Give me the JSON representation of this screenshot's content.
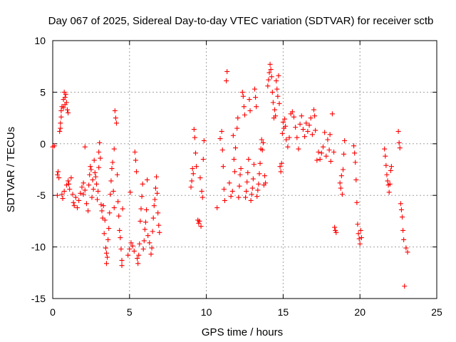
{
  "chart_data": {
    "type": "scatter",
    "title": "Day 067 of 2025, Sidereal Day-to-day VTEC variation (SDTVAR) for receiver sctb",
    "xlabel": "GPS time / hours",
    "ylabel": "SDTVAR / TECUs",
    "xlim": [
      0,
      25
    ],
    "ylim": [
      -15,
      10
    ],
    "xticks": [
      0,
      5,
      10,
      15,
      20,
      25
    ],
    "yticks": [
      -15,
      -10,
      -5,
      0,
      5,
      10
    ],
    "grid": true,
    "marker": "+",
    "marker_color": "#ff0000",
    "series": [
      {
        "name": "SDTVAR",
        "points": [
          [
            0.0,
            -0.3
          ],
          [
            0.1,
            -0.2
          ],
          [
            0.3,
            -3.0
          ],
          [
            0.3,
            -5.0
          ],
          [
            0.35,
            -2.7
          ],
          [
            0.4,
            -3.3
          ],
          [
            0.45,
            1.2
          ],
          [
            0.5,
            1.5
          ],
          [
            0.5,
            2.0
          ],
          [
            0.55,
            2.6
          ],
          [
            0.55,
            3.2
          ],
          [
            0.6,
            3.6
          ],
          [
            0.6,
            -4.9
          ],
          [
            0.65,
            -5.3
          ],
          [
            0.7,
            3.5
          ],
          [
            0.7,
            4.3
          ],
          [
            0.75,
            5.0
          ],
          [
            0.75,
            -4.6
          ],
          [
            0.8,
            4.5
          ],
          [
            0.8,
            3.8
          ],
          [
            0.85,
            4.8
          ],
          [
            0.9,
            -4.0
          ],
          [
            0.9,
            4.0
          ],
          [
            0.95,
            3.3
          ],
          [
            1.0,
            3.0
          ],
          [
            1.0,
            -3.6
          ],
          [
            1.05,
            -3.9
          ],
          [
            1.1,
            -4.4
          ],
          [
            1.2,
            -3.3
          ],
          [
            1.3,
            -4.9
          ],
          [
            1.35,
            -5.7
          ],
          [
            1.4,
            -6.0
          ],
          [
            1.5,
            -5.2
          ],
          [
            1.6,
            -6.2
          ],
          [
            1.7,
            -5.5
          ],
          [
            1.8,
            -4.8
          ],
          [
            1.9,
            -4.2
          ],
          [
            2.0,
            -3.8
          ],
          [
            2.0,
            -4.9
          ],
          [
            2.1,
            -0.3
          ],
          [
            2.1,
            -4.5
          ],
          [
            2.2,
            -5.8
          ],
          [
            2.3,
            -6.5
          ],
          [
            2.35,
            -4.0
          ],
          [
            2.4,
            -3.0
          ],
          [
            2.45,
            -2.2
          ],
          [
            2.5,
            -2.5
          ],
          [
            2.55,
            -5.2
          ],
          [
            2.6,
            -3.5
          ],
          [
            2.65,
            -4.4
          ],
          [
            2.7,
            -1.6
          ],
          [
            2.75,
            -2.8
          ],
          [
            2.8,
            -3.2
          ],
          [
            2.85,
            -3.9
          ],
          [
            2.9,
            -5.4
          ],
          [
            2.95,
            -4.6
          ],
          [
            3.0,
            -0.8
          ],
          [
            3.0,
            -2.3
          ],
          [
            3.05,
            0.1
          ],
          [
            3.1,
            -1.4
          ],
          [
            3.15,
            -5.9
          ],
          [
            3.2,
            -6.5
          ],
          [
            3.25,
            -7.2
          ],
          [
            3.3,
            -6.0
          ],
          [
            3.35,
            -8.7
          ],
          [
            3.4,
            -7.4
          ],
          [
            3.45,
            -10.1
          ],
          [
            3.5,
            -10.6
          ],
          [
            3.5,
            -11.6
          ],
          [
            3.55,
            -11.0
          ],
          [
            3.6,
            -9.3
          ],
          [
            3.65,
            -8.2
          ],
          [
            3.7,
            -6.7
          ],
          [
            3.75,
            -4.9
          ],
          [
            3.8,
            -3.6
          ],
          [
            3.85,
            -2.4
          ],
          [
            3.9,
            -1.8
          ],
          [
            3.95,
            -4.6
          ],
          [
            4.0,
            -6.2
          ],
          [
            4.0,
            -0.5
          ],
          [
            4.05,
            3.2
          ],
          [
            4.1,
            2.5
          ],
          [
            4.15,
            2.0
          ],
          [
            4.2,
            -3.0
          ],
          [
            4.25,
            -5.6
          ],
          [
            4.3,
            -7.0
          ],
          [
            4.35,
            -8.4
          ],
          [
            4.4,
            -9.1
          ],
          [
            4.45,
            -10.2
          ],
          [
            4.5,
            -11.3
          ],
          [
            4.5,
            -11.8
          ],
          [
            4.55,
            -6.3
          ],
          [
            4.9,
            -10.8
          ],
          [
            5.0,
            -10.2
          ],
          [
            5.05,
            -4.7
          ],
          [
            5.1,
            -9.6
          ],
          [
            5.2,
            -9.9
          ],
          [
            5.3,
            -10.4
          ],
          [
            5.35,
            -0.8
          ],
          [
            5.4,
            -1.6
          ],
          [
            5.45,
            -2.7
          ],
          [
            5.5,
            -11.1
          ],
          [
            5.55,
            -11.6
          ],
          [
            5.6,
            -10.8
          ],
          [
            5.65,
            -9.7
          ],
          [
            5.7,
            -7.5
          ],
          [
            5.75,
            -6.3
          ],
          [
            5.8,
            -5.1
          ],
          [
            5.85,
            -3.9
          ],
          [
            5.9,
            -10.2
          ],
          [
            5.95,
            -9.4
          ],
          [
            6.0,
            -8.3
          ],
          [
            6.05,
            -7.6
          ],
          [
            6.1,
            -6.4
          ],
          [
            6.15,
            -3.5
          ],
          [
            6.2,
            -8.9
          ],
          [
            6.3,
            -9.6
          ],
          [
            6.4,
            -10.7
          ],
          [
            6.45,
            -10.1
          ],
          [
            6.5,
            -8.5
          ],
          [
            6.55,
            -7.2
          ],
          [
            6.6,
            -6.0
          ],
          [
            6.65,
            -5.4
          ],
          [
            6.7,
            -4.3
          ],
          [
            6.75,
            -3.2
          ],
          [
            6.8,
            -4.8
          ],
          [
            6.85,
            -6.7
          ],
          [
            6.9,
            -7.9
          ],
          [
            6.95,
            -8.6
          ],
          [
            9.0,
            -4.2
          ],
          [
            9.05,
            -3.6
          ],
          [
            9.1,
            -2.4
          ],
          [
            9.15,
            -2.9
          ],
          [
            9.2,
            1.4
          ],
          [
            9.25,
            0.6
          ],
          [
            9.3,
            -0.9
          ],
          [
            9.35,
            -2.2
          ],
          [
            9.45,
            -7.4
          ],
          [
            9.5,
            -7.7
          ],
          [
            9.55,
            -7.5
          ],
          [
            9.6,
            -3.3
          ],
          [
            9.65,
            -8.0
          ],
          [
            9.7,
            -4.6
          ],
          [
            9.75,
            -5.2
          ],
          [
            9.8,
            -1.5
          ],
          [
            9.85,
            0.3
          ],
          [
            10.7,
            -6.2
          ],
          [
            10.9,
            0.5
          ],
          [
            11.0,
            1.2
          ],
          [
            11.05,
            -0.6
          ],
          [
            11.1,
            -2.2
          ],
          [
            11.15,
            -4.4
          ],
          [
            11.2,
            -5.5
          ],
          [
            11.3,
            6.1
          ],
          [
            11.35,
            7.0
          ],
          [
            11.5,
            -3.8
          ],
          [
            11.6,
            -5.1
          ],
          [
            11.7,
            -4.6
          ],
          [
            11.75,
            0.8
          ],
          [
            11.8,
            -1.5
          ],
          [
            11.85,
            -2.7
          ],
          [
            11.9,
            -0.4
          ],
          [
            12.0,
            1.5
          ],
          [
            12.05,
            2.5
          ],
          [
            12.1,
            -5.2
          ],
          [
            12.15,
            -4.1
          ],
          [
            12.2,
            -3.0
          ],
          [
            12.25,
            -2.4
          ],
          [
            12.35,
            5.0
          ],
          [
            12.4,
            4.6
          ],
          [
            12.45,
            3.6
          ],
          [
            12.5,
            2.8
          ],
          [
            12.55,
            -5.2
          ],
          [
            12.6,
            -4.6
          ],
          [
            12.65,
            -3.7
          ],
          [
            12.7,
            -2.8
          ],
          [
            12.75,
            -1.5
          ],
          [
            12.8,
            4.3
          ],
          [
            12.85,
            3.2
          ],
          [
            12.9,
            -5.5
          ],
          [
            12.95,
            -4.9
          ],
          [
            13.0,
            -4.3
          ],
          [
            13.05,
            -3.4
          ],
          [
            13.1,
            -2.0
          ],
          [
            13.15,
            5.3
          ],
          [
            13.2,
            4.5
          ],
          [
            13.25,
            3.6
          ],
          [
            13.3,
            -5.1
          ],
          [
            13.35,
            -4.5
          ],
          [
            13.4,
            -3.9
          ],
          [
            13.45,
            -2.9
          ],
          [
            13.5,
            -1.9
          ],
          [
            13.55,
            -0.5
          ],
          [
            13.6,
            0.4
          ],
          [
            13.65,
            -0.6
          ],
          [
            13.7,
            0.1
          ],
          [
            13.75,
            -4.0
          ],
          [
            13.8,
            -3.1
          ],
          [
            13.85,
            -3.8
          ],
          [
            14.0,
            5.6
          ],
          [
            14.05,
            6.2
          ],
          [
            14.1,
            6.9
          ],
          [
            14.15,
            7.7
          ],
          [
            14.2,
            7.2
          ],
          [
            14.25,
            6.5
          ],
          [
            14.3,
            5.0
          ],
          [
            14.35,
            4.0
          ],
          [
            14.4,
            2.5
          ],
          [
            14.45,
            3.3
          ],
          [
            14.5,
            2.7
          ],
          [
            14.55,
            6.1
          ],
          [
            14.6,
            5.3
          ],
          [
            14.65,
            4.6
          ],
          [
            14.7,
            6.6
          ],
          [
            14.75,
            3.9
          ],
          [
            14.8,
            -2.2
          ],
          [
            14.85,
            -2.7
          ],
          [
            14.9,
            -1.9
          ],
          [
            14.95,
            1.0
          ],
          [
            15.0,
            2.1
          ],
          [
            15.05,
            1.5
          ],
          [
            15.1,
            2.4
          ],
          [
            15.15,
            1.7
          ],
          [
            15.2,
            0.4
          ],
          [
            15.3,
            -0.3
          ],
          [
            15.4,
            0.6
          ],
          [
            15.5,
            2.9
          ],
          [
            15.6,
            3.1
          ],
          [
            15.7,
            2.6
          ],
          [
            15.8,
            1.6
          ],
          [
            15.9,
            0.6
          ],
          [
            16.0,
            -0.5
          ],
          [
            16.1,
            1.9
          ],
          [
            16.2,
            2.7
          ],
          [
            16.3,
            1.4
          ],
          [
            16.4,
            0.7
          ],
          [
            16.5,
            2.0
          ],
          [
            16.6,
            1.2
          ],
          [
            16.7,
            1.8
          ],
          [
            16.8,
            2.5
          ],
          [
            16.9,
            0.9
          ],
          [
            17.0,
            3.3
          ],
          [
            17.05,
            2.7
          ],
          [
            17.1,
            1.3
          ],
          [
            17.2,
            -1.6
          ],
          [
            17.3,
            -0.8
          ],
          [
            17.4,
            -1.5
          ],
          [
            17.5,
            -0.9
          ],
          [
            17.6,
            -0.3
          ],
          [
            17.7,
            1.1
          ],
          [
            17.8,
            -1.2
          ],
          [
            17.9,
            0.4
          ],
          [
            18.0,
            -0.6
          ],
          [
            18.05,
            0.9
          ],
          [
            18.1,
            -1.7
          ],
          [
            18.2,
            2.9
          ],
          [
            18.3,
            -0.8
          ],
          [
            18.35,
            -8.1
          ],
          [
            18.4,
            -8.4
          ],
          [
            18.45,
            -8.6
          ],
          [
            18.7,
            -3.8
          ],
          [
            18.75,
            -4.3
          ],
          [
            18.8,
            -3.1
          ],
          [
            18.85,
            -4.9
          ],
          [
            18.9,
            -2.5
          ],
          [
            18.95,
            -1.0
          ],
          [
            19.0,
            0.3
          ],
          [
            19.6,
            -0.2
          ],
          [
            19.65,
            -0.9
          ],
          [
            19.7,
            -1.8
          ],
          [
            19.75,
            -3.5
          ],
          [
            19.8,
            -5.7
          ],
          [
            19.85,
            -7.8
          ],
          [
            19.9,
            -8.7
          ],
          [
            19.95,
            -9.2
          ],
          [
            20.0,
            -9.7
          ],
          [
            20.05,
            -8.4
          ],
          [
            20.1,
            -9.1
          ],
          [
            21.6,
            -0.5
          ],
          [
            21.65,
            -1.2
          ],
          [
            21.7,
            -2.1
          ],
          [
            21.75,
            -3.0
          ],
          [
            21.8,
            -3.6
          ],
          [
            21.85,
            -4.0
          ],
          [
            21.9,
            -4.7
          ],
          [
            21.95,
            -3.9
          ],
          [
            22.0,
            -2.6
          ],
          [
            22.05,
            -2.2
          ],
          [
            22.5,
            1.2
          ],
          [
            22.55,
            0.1
          ],
          [
            22.6,
            -0.4
          ],
          [
            22.65,
            -5.8
          ],
          [
            22.7,
            -6.4
          ],
          [
            22.75,
            -7.1
          ],
          [
            22.8,
            -8.4
          ],
          [
            22.85,
            -9.3
          ],
          [
            22.9,
            -13.8
          ],
          [
            23.0,
            -10.1
          ],
          [
            23.1,
            -10.5
          ]
        ]
      }
    ]
  }
}
